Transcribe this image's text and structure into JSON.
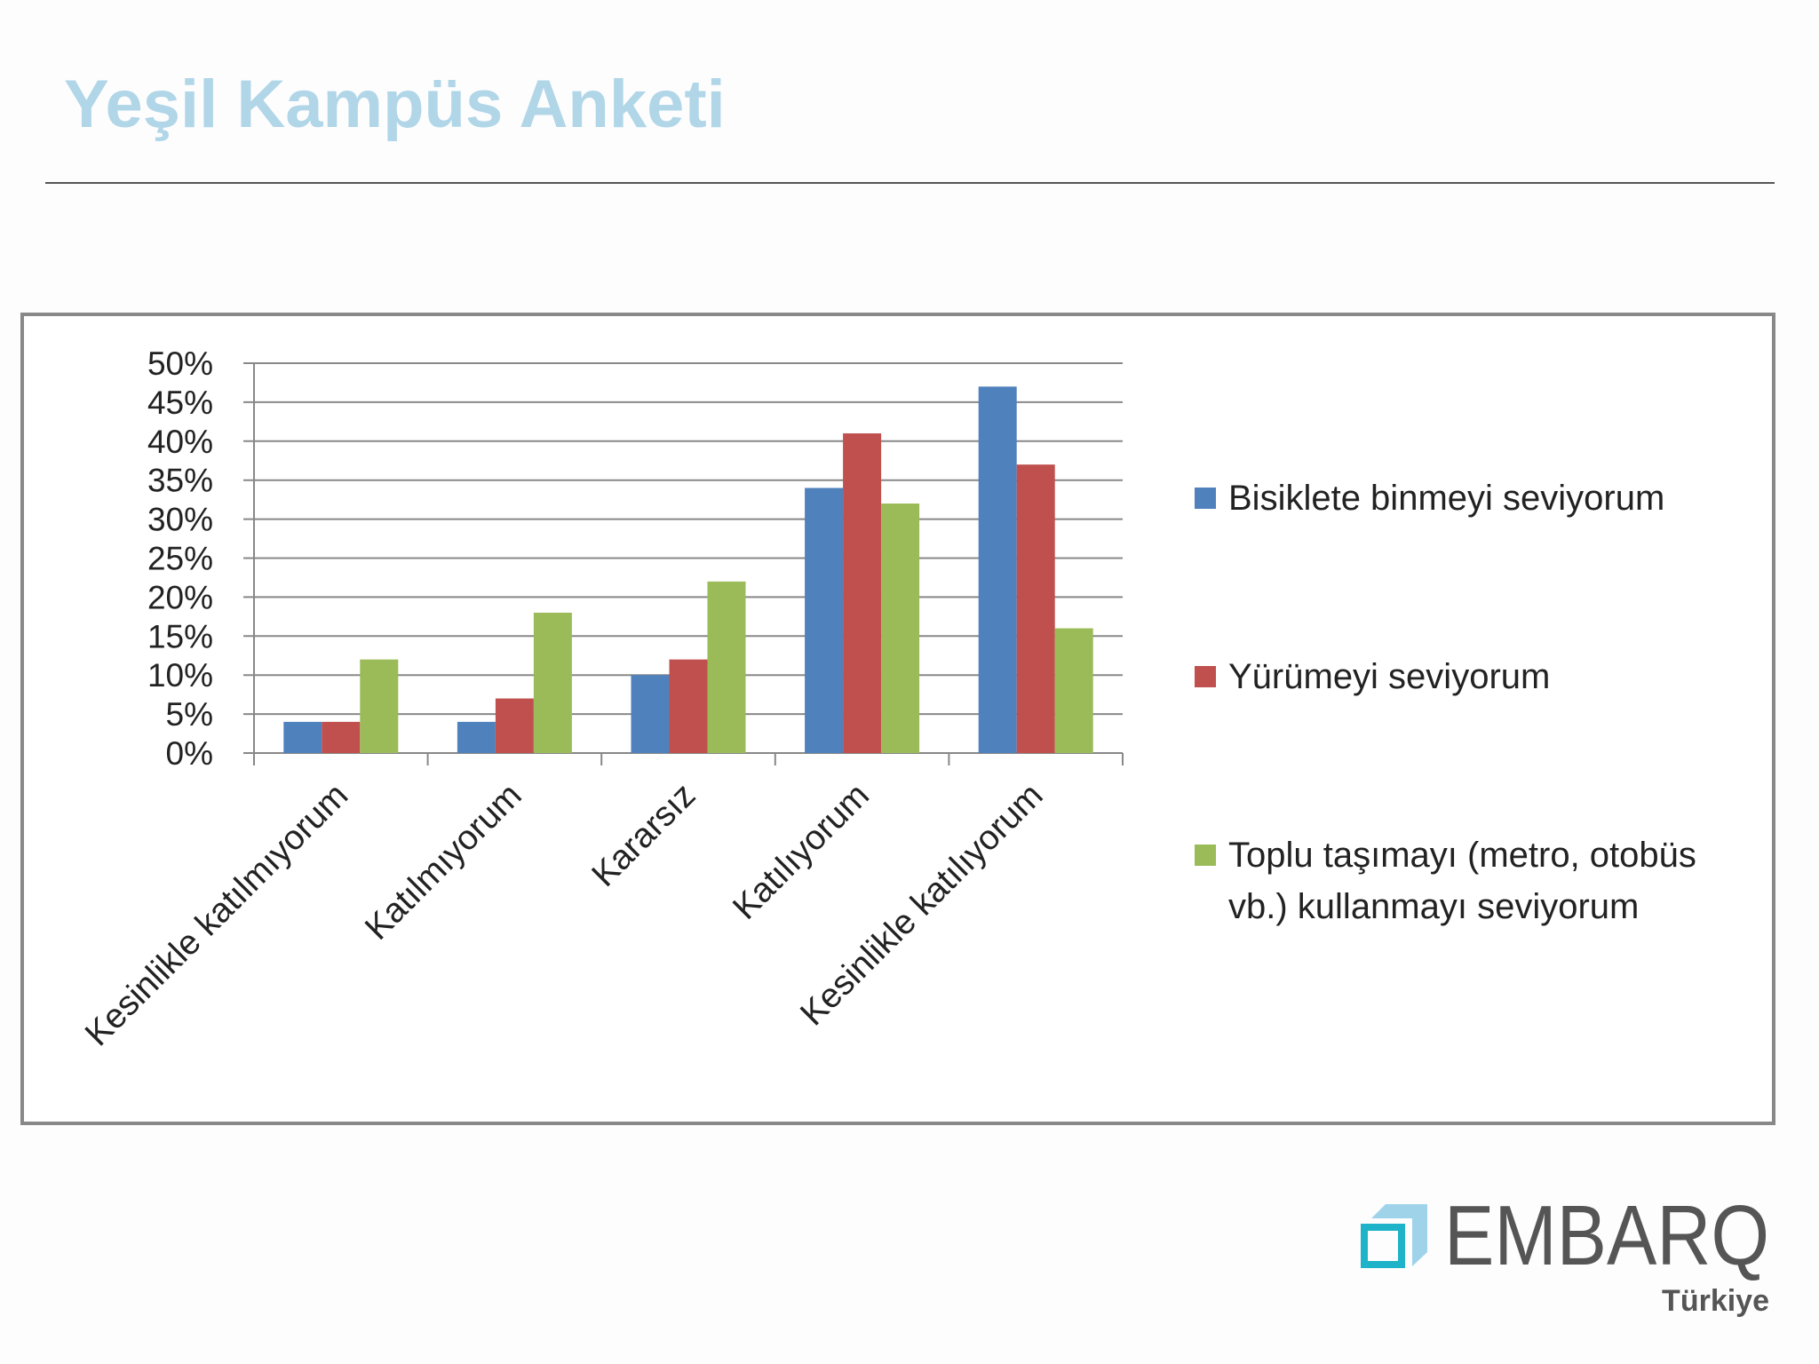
{
  "header": {
    "title": "Yeşil Kampüs Anketi"
  },
  "chart_data": {
    "type": "bar",
    "categories": [
      "Kesinlikle katılmıyorum",
      "Katılmıyorum",
      "Kararsız",
      "Katılıyorum",
      "Kesinlikle katılıyorum"
    ],
    "series": [
      {
        "name": "Bisiklete binmeyi seviyorum",
        "color": "#4f81bd",
        "values": [
          4,
          4,
          10,
          34,
          47
        ]
      },
      {
        "name": "Yürümeyi seviyorum",
        "color": "#c0504d",
        "values": [
          4,
          7,
          12,
          41,
          37
        ]
      },
      {
        "name": "Toplu taşımayı (metro, otobüs vb.) kullanmayı seviyorum",
        "color": "#9bbb59",
        "values": [
          12,
          18,
          22,
          32,
          16
        ]
      }
    ],
    "ylim": [
      0,
      50
    ],
    "yticks": [
      {
        "value": 0,
        "label": "0%"
      },
      {
        "value": 5,
        "label": "5%"
      },
      {
        "value": 10,
        "label": "10%"
      },
      {
        "value": 15,
        "label": "15%"
      },
      {
        "value": 20,
        "label": "20%"
      },
      {
        "value": 25,
        "label": "25%"
      },
      {
        "value": 30,
        "label": "30%"
      },
      {
        "value": 35,
        "label": "35%"
      },
      {
        "value": 40,
        "label": "40%"
      },
      {
        "value": 45,
        "label": "45%"
      },
      {
        "value": 50,
        "label": "50%"
      }
    ],
    "grid": true,
    "legend": "right"
  },
  "logo": {
    "name": "EMBARQ",
    "region": "Türkiye"
  }
}
